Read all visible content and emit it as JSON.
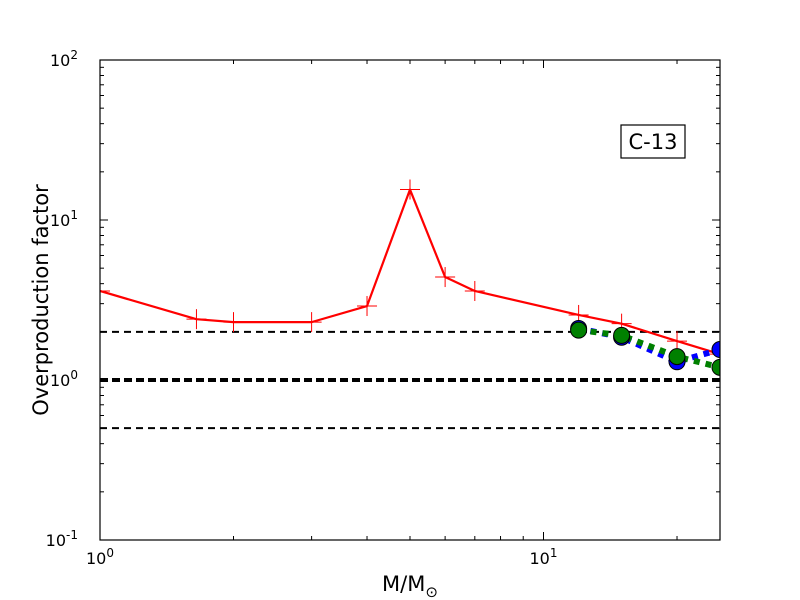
{
  "chart_data": {
    "type": "line",
    "xscale": "log",
    "yscale": "log",
    "xlim": [
      1,
      25
    ],
    "ylim": [
      0.1,
      100
    ],
    "xlabel": "M/M",
    "xlabel_sub": "⊙",
    "ylabel": "Overproduction factor",
    "x_ticks": [
      {
        "value": 1,
        "base": "10",
        "exp": "0"
      },
      {
        "value": 10,
        "base": "10",
        "exp": "1"
      }
    ],
    "y_ticks": [
      {
        "value": 0.1,
        "base": "10",
        "exp": "-1"
      },
      {
        "value": 1,
        "base": "10",
        "exp": "0"
      },
      {
        "value": 10,
        "base": "10",
        "exp": "1"
      },
      {
        "value": 100,
        "base": "10",
        "exp": "2"
      }
    ],
    "annotation": {
      "text": "C-13",
      "location": "top-right"
    },
    "hlines": [
      {
        "y": 2.0,
        "style": "dashed",
        "width": "thin"
      },
      {
        "y": 1.0,
        "style": "dashed",
        "width": "thick"
      },
      {
        "y": 0.5,
        "style": "dashed",
        "width": "thin"
      }
    ],
    "series": [
      {
        "style": "solid",
        "color": "#ff0000",
        "marker": "plus",
        "x": [
          1.0,
          1.65,
          2.0,
          3.0,
          4.0,
          5.0,
          6.0,
          7.0,
          12.0,
          15.0,
          20.0,
          25.0
        ],
        "y": [
          3.6,
          2.4,
          2.3,
          2.3,
          2.9,
          15.5,
          4.4,
          3.6,
          2.55,
          2.25,
          1.75,
          1.45
        ]
      },
      {
        "style": "dotted",
        "color": "#0000ff",
        "marker": "circle",
        "x": [
          12.0,
          15.0,
          20.0,
          25.0
        ],
        "y": [
          2.1,
          1.85,
          1.3,
          1.55
        ]
      },
      {
        "style": "dotted",
        "color": "#008000",
        "marker": "circle",
        "x": [
          12.0,
          15.0,
          20.0,
          25.0
        ],
        "y": [
          2.05,
          1.9,
          1.4,
          1.2
        ]
      }
    ]
  }
}
